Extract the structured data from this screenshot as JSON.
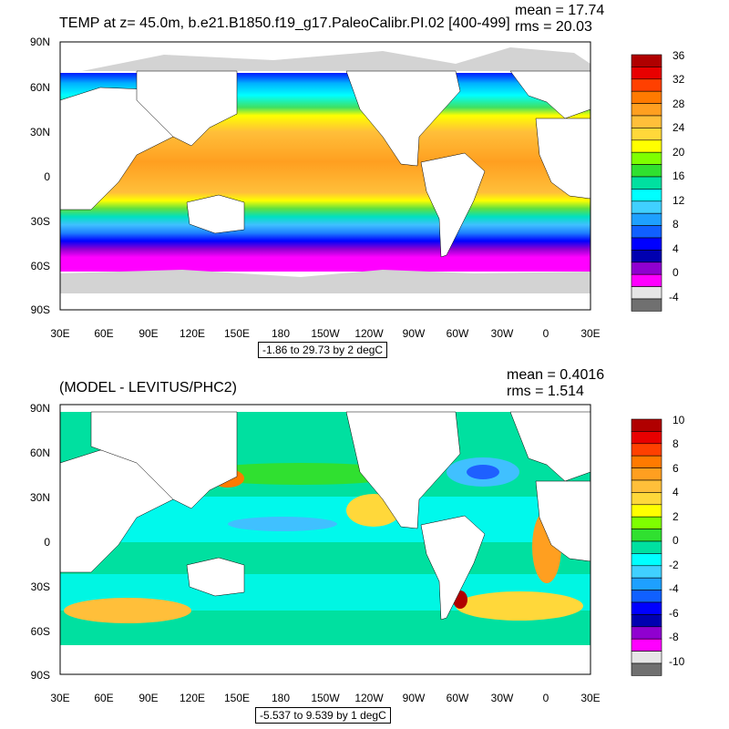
{
  "panels": [
    {
      "id": "top",
      "title": "TEMP at z=  45.0m, b.e21.B1850.f19_g17.PaleoCalibr.PI.02 [400-499]",
      "mean_label": "mean = 17.74",
      "rms_label": "rms = 20.03",
      "info": "-1.86 to 29.73 by 2 degC",
      "x_ticks": [
        "30E",
        "60E",
        "90E",
        "120E",
        "150E",
        "180",
        "150W",
        "120W",
        "90W",
        "60W",
        "30W",
        "0",
        "30E"
      ],
      "y_ticks": [
        "90N",
        "60N",
        "30N",
        "0",
        "30S",
        "60S",
        "90S"
      ],
      "colorbar": {
        "labels": [
          "36",
          "32",
          "28",
          "24",
          "20",
          "16",
          "12",
          "8",
          "4",
          "0",
          "-4"
        ],
        "colors": [
          "#b00000",
          "#e80000",
          "#ff4000",
          "#ff7a00",
          "#ff9f20",
          "#ffbf3a",
          "#ffd83a",
          "#ffff00",
          "#7fff00",
          "#30e030",
          "#00e0a0",
          "#00ffff",
          "#40d0ff",
          "#1ea0ff",
          "#1060ff",
          "#0000ff",
          "#0000b0",
          "#9000d0",
          "#ff00ff",
          "#e6e6e6",
          "#707070"
        ]
      }
    },
    {
      "id": "bottom",
      "title": "(MODEL - LEVITUS/PHC2)",
      "mean_label": "mean = 0.4016",
      "rms_label": "rms = 1.514",
      "info": "-5.537 to 9.539 by 1 degC",
      "x_ticks": [
        "30E",
        "60E",
        "90E",
        "120E",
        "150E",
        "180",
        "150W",
        "120W",
        "90W",
        "60W",
        "30W",
        "0",
        "30E"
      ],
      "y_ticks": [
        "90N",
        "60N",
        "30N",
        "0",
        "30S",
        "60S",
        "90S"
      ],
      "colorbar": {
        "labels": [
          "10",
          "8",
          "6",
          "4",
          "2",
          "0",
          "-2",
          "-4",
          "-6",
          "-8",
          "-10"
        ],
        "colors": [
          "#b00000",
          "#e80000",
          "#ff4000",
          "#ff7a00",
          "#ff9f20",
          "#ffbf3a",
          "#ffd83a",
          "#ffff00",
          "#7fff00",
          "#30e030",
          "#00e0a0",
          "#00ffff",
          "#40d0ff",
          "#1ea0ff",
          "#1060ff",
          "#0000ff",
          "#0000b0",
          "#9000d0",
          "#ff00ff",
          "#e6e6e6",
          "#707070"
        ]
      }
    }
  ],
  "colors": {
    "land": "#ffffff",
    "ice": "#d3d3d3"
  }
}
